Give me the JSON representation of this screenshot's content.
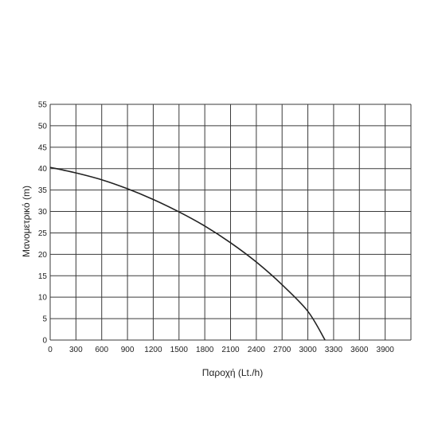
{
  "chart_data": {
    "type": "line",
    "xlabel": "Παροχή (Lt./h)",
    "ylabel": "Μανομετρικό (m)",
    "xlim": [
      0,
      4200
    ],
    "ylim": [
      0,
      55
    ],
    "x_ticks": [
      0,
      300,
      600,
      900,
      1200,
      1500,
      1800,
      2100,
      2400,
      2700,
      3000,
      3300,
      3600,
      3900
    ],
    "y_ticks": [
      0,
      5,
      10,
      15,
      20,
      25,
      30,
      35,
      40,
      45,
      50,
      55
    ],
    "grid": true,
    "series": [
      {
        "color": "#222222",
        "points": [
          {
            "x": 0,
            "y": 40.3
          },
          {
            "x": 300,
            "y": 39.0
          },
          {
            "x": 600,
            "y": 37.4
          },
          {
            "x": 900,
            "y": 35.3
          },
          {
            "x": 1200,
            "y": 32.8
          },
          {
            "x": 1500,
            "y": 29.9
          },
          {
            "x": 1800,
            "y": 26.6
          },
          {
            "x": 2100,
            "y": 22.7
          },
          {
            "x": 2400,
            "y": 18.2
          },
          {
            "x": 2700,
            "y": 12.9
          },
          {
            "x": 3000,
            "y": 6.7
          },
          {
            "x": 3200,
            "y": 0.0
          }
        ]
      }
    ]
  },
  "colors": {
    "grid": "#3a3a3a",
    "curve": "#222222",
    "text": "#222222"
  }
}
